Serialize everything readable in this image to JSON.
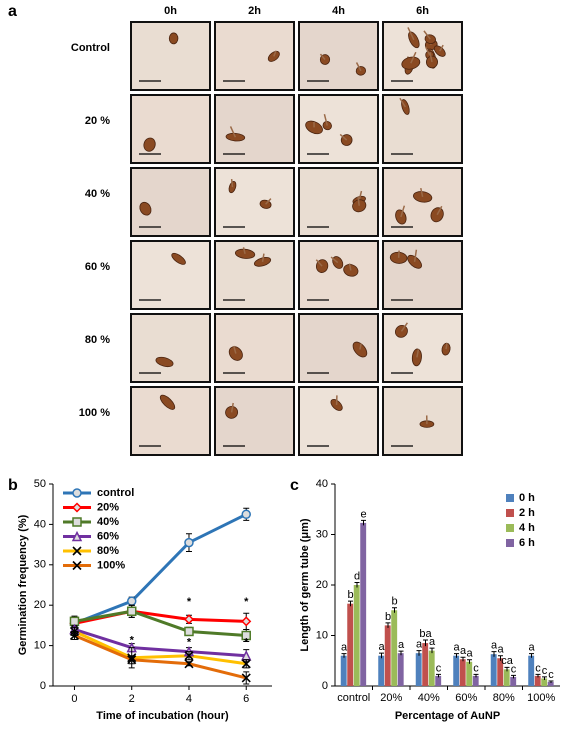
{
  "panel_a": {
    "label": "a",
    "columns": [
      "0h",
      "2h",
      "4h",
      "6h"
    ],
    "rows": [
      "Control",
      "20 %",
      "40 %",
      "60 %",
      "80 %",
      "100 %"
    ]
  },
  "chart_data": [
    {
      "type": "line",
      "panel_label": "b",
      "x_label": "Time of incubation (hour)",
      "y_label": "Germination frequency (%)",
      "x": [
        0,
        2,
        4,
        6
      ],
      "xlim": [
        -0.75,
        6.9
      ],
      "xticks": [
        0,
        2,
        4,
        6
      ],
      "ylim": [
        0,
        50
      ],
      "yticks": [
        0,
        10,
        20,
        30,
        40,
        50
      ],
      "legend": "top-left",
      "series": [
        {
          "name": "control",
          "color": "#2e75b6",
          "marker": "circle",
          "values": [
            15.5,
            21,
            35.5,
            42.5
          ],
          "errors": [
            1.5,
            1,
            2.2,
            1.5
          ]
        },
        {
          "name": "20%",
          "color": "#ff0000",
          "marker": "diamond",
          "values": [
            15.5,
            18.5,
            16.5,
            16
          ],
          "errors": [
            1.2,
            1.5,
            1,
            2
          ]
        },
        {
          "name": "40%",
          "color": "#4f7a28",
          "marker": "square",
          "values": [
            16,
            18.5,
            13.5,
            12.5
          ],
          "errors": [
            1.3,
            1.5,
            1,
            1.5
          ]
        },
        {
          "name": "60%",
          "color": "#7030a0",
          "marker": "triangle",
          "values": [
            14,
            9.5,
            8.5,
            7.5
          ],
          "errors": [
            1,
            1,
            1,
            1.5
          ]
        },
        {
          "name": "80%",
          "color": "#ffc000",
          "marker": "x",
          "values": [
            13.5,
            7,
            7.5,
            5.5
          ],
          "errors": [
            1,
            2.5,
            1,
            1
          ]
        },
        {
          "name": "100%",
          "color": "#e36c09",
          "marker": "x",
          "values": [
            12.5,
            6.5,
            5.5,
            2
          ],
          "errors": [
            1,
            1,
            0.5,
            1.5
          ]
        }
      ],
      "annotations": [
        {
          "text": "*",
          "x": 2,
          "y": 12
        },
        {
          "text": "*",
          "x": 4,
          "y": 21.5
        },
        {
          "text": "*",
          "x": 6,
          "y": 21.5
        },
        {
          "text": "*",
          "x": 4,
          "y": 11.5
        },
        {
          "text": "*",
          "x": 6,
          "y": 11.5
        }
      ]
    },
    {
      "type": "bar",
      "panel_label": "c",
      "x_label": "Percentage of AuNP",
      "y_label": "Length of germ tube (μm)",
      "categories": [
        "control",
        "20%",
        "40%",
        "60%",
        "80%",
        "100%"
      ],
      "ylim": [
        0,
        40
      ],
      "yticks": [
        0,
        10,
        20,
        30,
        40
      ],
      "legend": "top-right",
      "series": [
        {
          "name": "0 h",
          "color": "#4f81bd",
          "values": [
            6,
            6,
            6.5,
            6,
            6.3,
            6
          ],
          "errors": [
            0.4,
            0.5,
            0.5,
            0.4,
            0.5,
            0.4
          ],
          "labels": [
            "a",
            "a",
            "a",
            "a",
            "a",
            "a"
          ]
        },
        {
          "name": "2 h",
          "color": "#c0504d",
          "values": [
            16.3,
            12,
            8.5,
            5.3,
            5.5,
            2
          ],
          "errors": [
            0.5,
            0.5,
            0.6,
            0.4,
            0.5,
            0.3
          ],
          "labels": [
            "b",
            "b",
            "ba",
            "a",
            "a",
            "c"
          ]
        },
        {
          "name": "4 h",
          "color": "#9bbb59",
          "values": [
            20,
            15,
            7,
            4.8,
            3.3,
            1.5
          ],
          "errors": [
            0.5,
            0.5,
            0.5,
            0.4,
            0.4,
            0.3
          ],
          "labels": [
            "d",
            "b",
            "a",
            "a",
            "ca",
            "c"
          ]
        },
        {
          "name": "6 h",
          "color": "#8064a2",
          "values": [
            32.3,
            6.5,
            2,
            2,
            1.8,
            0.8
          ],
          "errors": [
            0.5,
            0.4,
            0.3,
            0.3,
            0.3,
            0.2
          ],
          "labels": [
            "e",
            "a",
            "c",
            "c",
            "c",
            "c"
          ]
        }
      ]
    }
  ]
}
